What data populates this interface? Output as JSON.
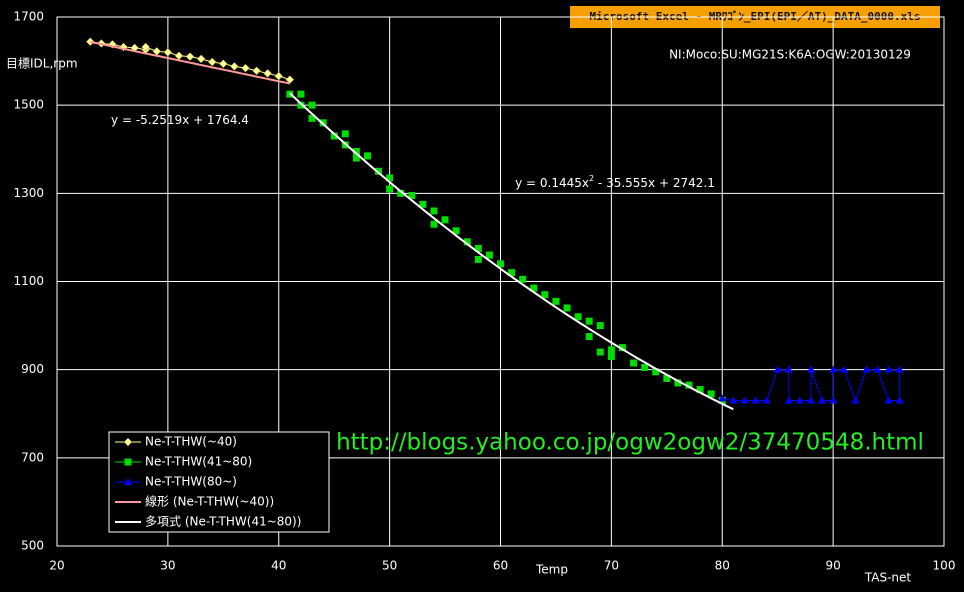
{
  "window_title": "Microsoft Excel - MRﾜｺﾞﾝ_EPI(EPI／AT)_DATA_0000.xls",
  "watermark": "http://blogs.yahoo.co.jp/ogw2ogw2/37470548.html",
  "chart_data": {
    "type": "scatter",
    "subtitle": "NI:Moco:SU:MG21S:K6A:OGW:20130129",
    "y_label": "目標IDL,rpm",
    "x_label": "Temp",
    "x_label_right": "TAS-net",
    "xlim": [
      20,
      100
    ],
    "xticks": [
      20,
      30,
      40,
      50,
      60,
      70,
      80,
      90,
      100
    ],
    "ylim": [
      500,
      1700
    ],
    "yticks": [
      500,
      700,
      900,
      1100,
      1300,
      1500,
      1700
    ],
    "grid": true,
    "series": [
      {
        "name": "Ne-T-THW(~40)",
        "color": "#ffff99",
        "marker": "diamond",
        "lines": true,
        "x": [
          23,
          24,
          25,
          26,
          27,
          28,
          28,
          29,
          30,
          31,
          32,
          33,
          34,
          35,
          36,
          37,
          38,
          39,
          40,
          41
        ],
        "values": [
          1644,
          1640,
          1638,
          1632,
          1630,
          1626,
          1632,
          1622,
          1620,
          1612,
          1610,
          1605,
          1598,
          1594,
          1588,
          1584,
          1578,
          1572,
          1566,
          1558
        ]
      },
      {
        "name": "Ne-T-THW(41~80)",
        "color": "#00dd00",
        "marker": "square",
        "lines": false,
        "x": [
          41,
          42,
          42,
          43,
          43,
          44,
          45,
          46,
          46,
          47,
          47,
          48,
          49,
          50,
          50,
          51,
          52,
          53,
          54,
          54,
          55,
          56,
          57,
          58,
          58,
          59,
          60,
          61,
          62,
          63,
          64,
          65,
          66,
          67,
          68,
          68,
          69,
          69,
          70,
          70,
          71,
          72,
          73,
          74,
          75,
          76,
          77,
          78,
          79,
          80
        ],
        "values": [
          1525,
          1525,
          1500,
          1500,
          1470,
          1460,
          1430,
          1435,
          1410,
          1380,
          1395,
          1385,
          1350,
          1335,
          1310,
          1300,
          1295,
          1275,
          1260,
          1230,
          1240,
          1215,
          1190,
          1175,
          1150,
          1160,
          1140,
          1120,
          1105,
          1085,
          1070,
          1055,
          1040,
          1020,
          1010,
          975,
          1000,
          940,
          930,
          945,
          950,
          915,
          905,
          895,
          880,
          870,
          865,
          855,
          845,
          830
        ]
      },
      {
        "name": "Ne-T-THW(80~)",
        "color": "#0000ff",
        "marker": "triangle",
        "lines": true,
        "x": [
          80,
          81,
          82,
          83,
          84,
          85,
          86,
          86,
          87,
          88,
          88,
          89,
          90,
          90,
          91,
          92,
          93,
          94,
          95,
          96,
          96,
          95
        ],
        "values": [
          835,
          830,
          830,
          830,
          830,
          900,
          900,
          830,
          830,
          830,
          900,
          830,
          830,
          900,
          900,
          830,
          900,
          900,
          830,
          830,
          900,
          900
        ]
      }
    ],
    "trendlines": [
      {
        "name": "線形 (Ne-T-THW(~40))",
        "color": "#ff9999",
        "coefficients": [
          1764.4,
          -5.2519
        ],
        "xrange": [
          23,
          41
        ],
        "equation": [
          "y = -5.2519x + 1764.4"
        ]
      },
      {
        "name": "多項式 (Ne-T-THW(41~80))",
        "color": "#ffffff",
        "coefficients": [
          2742.1,
          -35.555,
          0.1445
        ],
        "xrange": [
          41,
          81
        ],
        "equation": [
          "y = 0.1445x",
          "2",
          " - 35.555x + 2742.1"
        ]
      }
    ]
  }
}
